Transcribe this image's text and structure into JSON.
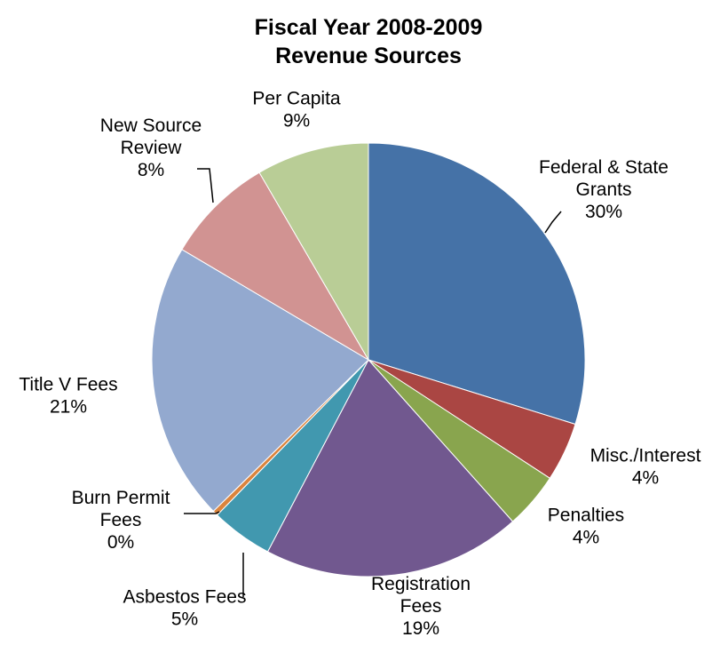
{
  "chart_data": {
    "type": "pie",
    "title": [
      "Fiscal Year 2008-2009",
      "Revenue Sources"
    ],
    "start_angle_deg": 0,
    "direction": "clockwise",
    "slices": [
      {
        "name": "Federal & State Grants",
        "label_lines": [
          "Federal & State",
          "Grants",
          "30%"
        ],
        "value": 29.8,
        "color": "#4572A7"
      },
      {
        "name": "Misc./Interest",
        "label_lines": [
          "Misc./Interest",
          "4%"
        ],
        "value": 4.4,
        "color": "#AA4643"
      },
      {
        "name": "Penalties",
        "label_lines": [
          "Penalties",
          "4%"
        ],
        "value": 4.2,
        "color": "#89A54E"
      },
      {
        "name": "Registration Fees",
        "label_lines": [
          "Registration",
          "Fees",
          "19%"
        ],
        "value": 19.3,
        "color": "#71588F"
      },
      {
        "name": "Asbestos Fees",
        "label_lines": [
          "Asbestos Fees",
          "5%"
        ],
        "value": 4.6,
        "color": "#4198AF"
      },
      {
        "name": "Burn Permit Fees",
        "label_lines": [
          "Burn Permit",
          "Fees",
          "0%"
        ],
        "value": 0.4,
        "color": "#DB843D"
      },
      {
        "name": "Title V Fees",
        "label_lines": [
          "Title V Fees",
          "21%"
        ],
        "value": 20.8,
        "color": "#93A9CF"
      },
      {
        "name": "New Source Review",
        "label_lines": [
          "New Source",
          "Review",
          "8%"
        ],
        "value": 8.1,
        "color": "#D19392"
      },
      {
        "name": "Per Capita",
        "label_lines": [
          "Per Capita",
          "9%"
        ],
        "value": 8.4,
        "color": "#B9CD96"
      }
    ]
  }
}
